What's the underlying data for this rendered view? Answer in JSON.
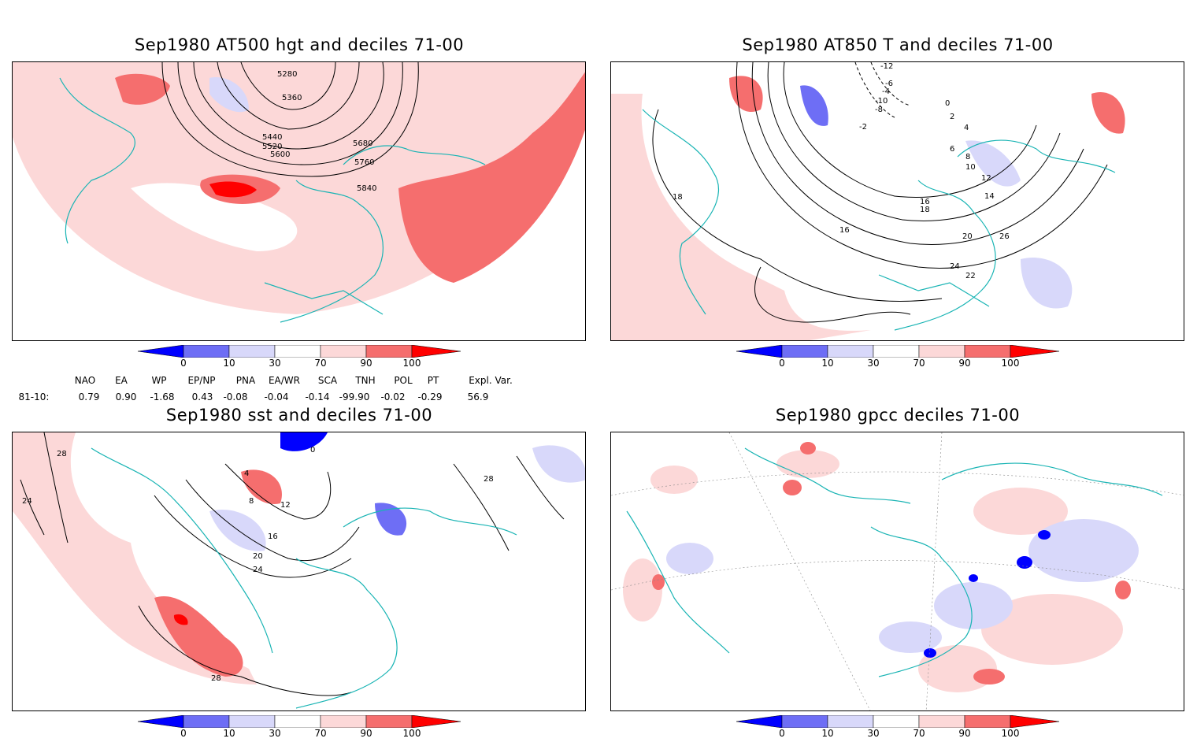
{
  "panels": [
    {
      "title": "Sep1980 AT500 hgt and deciles 71-00",
      "contour_labels": [
        "5280",
        "5360",
        "5440",
        "5520",
        "5600",
        "5680",
        "5760",
        "5840"
      ]
    },
    {
      "title": "Sep1980 AT850 T and deciles 71-00",
      "contour_labels": [
        "-12",
        "-6",
        "-4",
        "-10",
        "-8",
        "-2",
        "0",
        "2",
        "4",
        "6",
        "8",
        "10",
        "12",
        "14",
        "16",
        "18",
        "20",
        "22",
        "24",
        "26",
        "18",
        "16"
      ]
    },
    {
      "title": "Sep1980 sst and deciles 71-00",
      "contour_labels": [
        "28",
        "24",
        "0",
        "4",
        "8",
        "12",
        "16",
        "20",
        "24",
        "28",
        "28"
      ]
    },
    {
      "title": "Sep1980 gpcc deciles 71-00",
      "contour_labels": []
    }
  ],
  "colorbar": {
    "ticks": [
      "0",
      "10",
      "30",
      "70",
      "90",
      "100"
    ],
    "colors": [
      "#0000ff",
      "#6e6ef5",
      "#d8d8fa",
      "#ffffff",
      "#fcd8d8",
      "#f56e6e",
      "#ff0000"
    ]
  },
  "indices": {
    "headers": [
      "NAO",
      "EA",
      "WP",
      "EP/NP",
      "PNA",
      "EA/WR",
      "SCA",
      "TNH",
      "POL",
      "PT",
      "Expl. Var."
    ],
    "row_label": "81-10:",
    "values": [
      "0.79",
      "0.90",
      "-1.68",
      "0.43",
      "-0.08",
      "-0.04",
      "-0.14",
      "-99.90",
      "-0.02",
      "-0.29",
      "56.9"
    ]
  },
  "colors": {
    "coast": "#19b4b4",
    "frame": "#000000",
    "light_red": "#fcd8d8",
    "mid_red": "#f56e6e",
    "dark_red": "#ff0000",
    "light_blue": "#d8d8fa",
    "mid_blue": "#6e6ef5",
    "dark_blue": "#0000ff"
  }
}
